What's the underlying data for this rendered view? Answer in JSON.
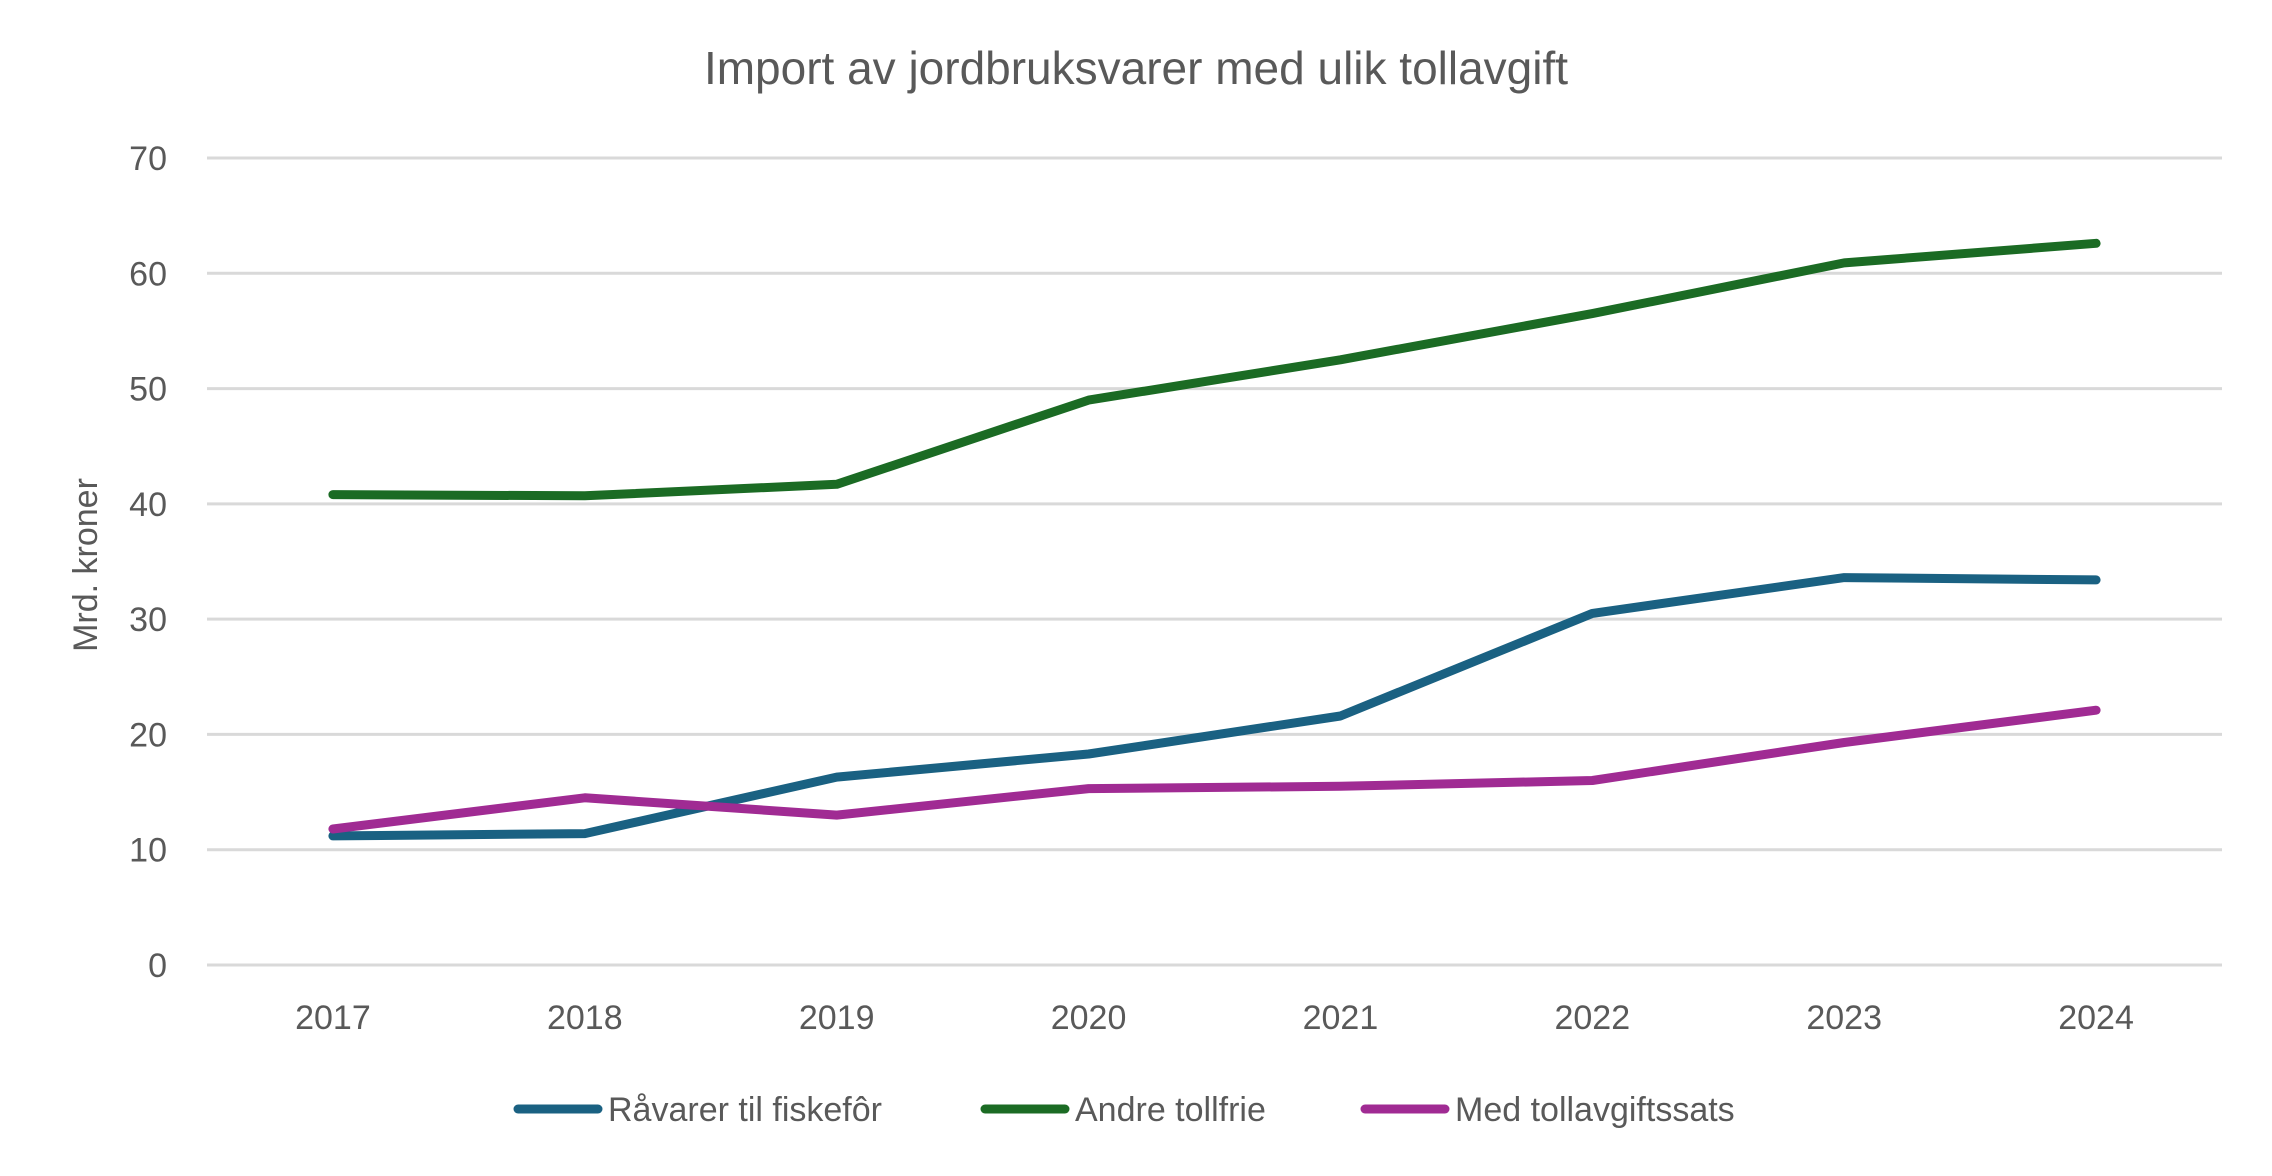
{
  "chart_data": {
    "type": "line",
    "title": "Import av jordbruksvarer med ulik tollavgift",
    "xlabel": "",
    "ylabel": "Mrd. kroner",
    "ylim": [
      0,
      70
    ],
    "yticks": [
      0,
      10,
      20,
      30,
      40,
      50,
      60,
      70
    ],
    "ytick_labels": [
      "0",
      "10",
      "20",
      "30",
      "40",
      "50",
      "60",
      "70"
    ],
    "grid": true,
    "legend_position": "bottom",
    "categories": [
      "2017",
      "2018",
      "2019",
      "2020",
      "2021",
      "2022",
      "2023",
      "2024"
    ],
    "series": [
      {
        "name": "Råvarer til fiskefôr",
        "color": "#1a6182",
        "values": [
          11.2,
          11.4,
          16.3,
          18.3,
          21.6,
          30.5,
          33.6,
          33.4
        ]
      },
      {
        "name": "Andre tollfrie",
        "color": "#1b6b24",
        "values": [
          40.8,
          40.7,
          41.7,
          49.0,
          52.5,
          56.5,
          60.9,
          62.6
        ]
      },
      {
        "name": "Med tollavgiftssats",
        "color": "#a02b93",
        "values": [
          11.8,
          14.5,
          13.0,
          15.3,
          15.5,
          16.0,
          19.3,
          22.1
        ]
      }
    ]
  }
}
